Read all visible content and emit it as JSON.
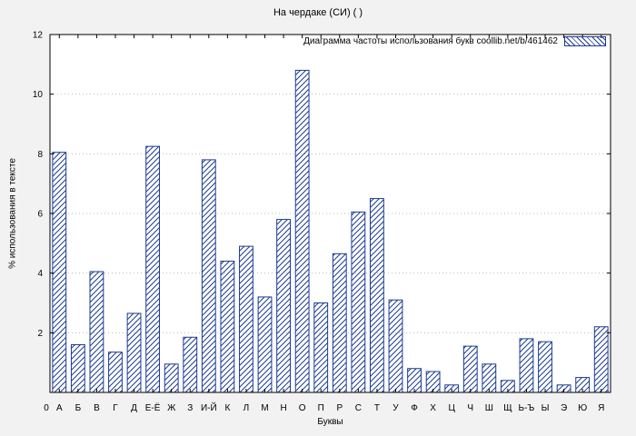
{
  "page": {
    "background": "#f2f2f2",
    "plot_background": "#ffffff",
    "grid_color": "#b9b9b9",
    "axis_color": "#000000"
  },
  "chart_data": {
    "type": "bar",
    "title": "На чердаке (СИ) ( )",
    "legend_label": "Диаграмма частоты использования букв  coollib.net/b/461462",
    "xlabel": "Буквы",
    "ylabel": "% использования в тексте",
    "origin_label": "0",
    "ylim": [
      0,
      12
    ],
    "yticks": [
      0,
      2,
      4,
      6,
      8,
      10,
      12
    ],
    "grid": true,
    "legend_position": "top-right",
    "bar_color": "#1b3a94",
    "categories": [
      "А",
      "Б",
      "В",
      "Г",
      "Д",
      "Е-Ё",
      "Ж",
      "З",
      "И-Й",
      "К",
      "Л",
      "М",
      "Н",
      "О",
      "П",
      "Р",
      "С",
      "Т",
      "У",
      "Ф",
      "Х",
      "Ц",
      "Ч",
      "Ш",
      "Щ",
      "Ь-Ъ",
      "Ы",
      "Э",
      "Ю",
      "Я"
    ],
    "values": [
      8.05,
      1.6,
      4.05,
      1.35,
      2.65,
      8.25,
      0.95,
      1.85,
      7.8,
      4.4,
      4.9,
      3.2,
      5.8,
      10.8,
      3.0,
      4.65,
      6.05,
      6.5,
      3.1,
      0.8,
      0.7,
      0.25,
      1.55,
      0.95,
      0.4,
      1.8,
      1.7,
      0.25,
      0.5,
      2.2
    ]
  }
}
